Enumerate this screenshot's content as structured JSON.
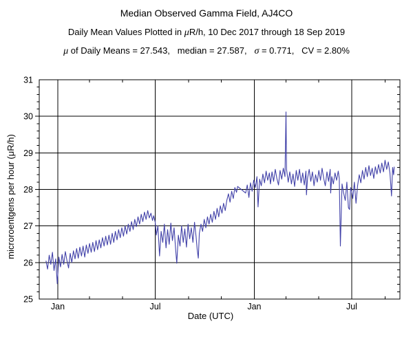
{
  "header": {
    "title": "Median Observed Gamma Field, AJ4CO",
    "subtitle_parts": [
      {
        "t": "Daily Mean Values Plotted in ",
        "i": 0
      },
      {
        "t": "μ",
        "i": 1
      },
      {
        "t": "R/h, 10 Dec 2017 through 18 Sep 2019",
        "i": 0
      }
    ],
    "stats_parts": [
      {
        "t": "μ",
        "i": 1
      },
      {
        "t": " of Daily Means = 27.543,   ",
        "i": 0
      },
      {
        "t": "median = 27.587,   ",
        "i": 0
      },
      {
        "t": "σ",
        "i": 1
      },
      {
        "t": " = 0.771,   ",
        "i": 0
      },
      {
        "t": "CV = 2.80%",
        "i": 0
      }
    ]
  },
  "chart_data": {
    "type": "line",
    "title": "Median Observed Gamma Field, AJ4CO",
    "xlabel": "Date (UTC)",
    "ylabel": "microroentgens per hour (μR/h)",
    "x_start_date": "2017-12-10",
    "x_end_date": "2019-09-18",
    "ylim": [
      25,
      31
    ],
    "y_major_ticks": [
      25,
      26,
      27,
      28,
      29,
      30,
      31
    ],
    "y_minor_step": 0.2,
    "x_major_ticks": [
      {
        "day": 22,
        "label": "Jan"
      },
      {
        "day": 203,
        "label": "Jul"
      },
      {
        "day": 387,
        "label": "Jan"
      },
      {
        "day": 568,
        "label": "Jul"
      }
    ],
    "x_minor_tick_days": [
      81,
      142,
      265,
      326,
      446,
      507,
      630
    ],
    "x_range_days": [
      -12.5,
      657.6
    ],
    "grid": true,
    "legend": "none",
    "colors": {
      "line": "#4040a8",
      "grid": "#000000",
      "background": "#ffffff",
      "text": "#000000"
    },
    "stats": {
      "mean": 27.543,
      "median": 27.587,
      "sigma": 0.771,
      "cv_percent": 2.8
    },
    "series": [
      {
        "name": "daily-mean-gamma-field",
        "points": [
          [
            0,
            26.05
          ],
          [
            3,
            25.82
          ],
          [
            6,
            26.2
          ],
          [
            9,
            25.95
          ],
          [
            12,
            26.28
          ],
          [
            15,
            25.78
          ],
          [
            18,
            26.1
          ],
          [
            21,
            25.42
          ],
          [
            24,
            26.15
          ],
          [
            27,
            25.88
          ],
          [
            30,
            26.22
          ],
          [
            33,
            25.95
          ],
          [
            36,
            26.3
          ],
          [
            39,
            26.05
          ],
          [
            42,
            25.85
          ],
          [
            45,
            26.25
          ],
          [
            48,
            26.0
          ],
          [
            51,
            26.32
          ],
          [
            54,
            26.1
          ],
          [
            57,
            26.38
          ],
          [
            60,
            26.12
          ],
          [
            63,
            26.42
          ],
          [
            66,
            26.18
          ],
          [
            69,
            26.45
          ],
          [
            72,
            26.15
          ],
          [
            75,
            26.48
          ],
          [
            78,
            26.25
          ],
          [
            81,
            26.52
          ],
          [
            84,
            26.28
          ],
          [
            87,
            26.55
          ],
          [
            90,
            26.3
          ],
          [
            93,
            26.6
          ],
          [
            96,
            26.35
          ],
          [
            99,
            26.62
          ],
          [
            102,
            26.4
          ],
          [
            105,
            26.68
          ],
          [
            108,
            26.45
          ],
          [
            111,
            26.72
          ],
          [
            114,
            26.48
          ],
          [
            117,
            26.75
          ],
          [
            120,
            26.5
          ],
          [
            123,
            26.8
          ],
          [
            126,
            26.55
          ],
          [
            129,
            26.85
          ],
          [
            132,
            26.62
          ],
          [
            135,
            26.9
          ],
          [
            138,
            26.68
          ],
          [
            141,
            26.95
          ],
          [
            144,
            26.72
          ],
          [
            147,
            27.0
          ],
          [
            150,
            26.78
          ],
          [
            153,
            27.05
          ],
          [
            156,
            26.85
          ],
          [
            159,
            27.12
          ],
          [
            162,
            26.9
          ],
          [
            165,
            27.18
          ],
          [
            168,
            26.98
          ],
          [
            171,
            27.25
          ],
          [
            174,
            27.05
          ],
          [
            177,
            27.32
          ],
          [
            180,
            27.12
          ],
          [
            183,
            27.38
          ],
          [
            186,
            27.18
          ],
          [
            189,
            27.42
          ],
          [
            192,
            27.22
          ],
          [
            195,
            27.35
          ],
          [
            198,
            27.15
          ],
          [
            200,
            27.28
          ],
          [
            203,
            27.1
          ],
          [
            205,
            26.75
          ],
          [
            208,
            27.0
          ],
          [
            211,
            26.18
          ],
          [
            214,
            26.85
          ],
          [
            217,
            26.55
          ],
          [
            220,
            27.05
          ],
          [
            223,
            26.4
          ],
          [
            226,
            26.9
          ],
          [
            229,
            26.5
          ],
          [
            232,
            27.08
          ],
          [
            235,
            26.6
          ],
          [
            238,
            26.95
          ],
          [
            241,
            26.35
          ],
          [
            243,
            25.98
          ],
          [
            246,
            26.75
          ],
          [
            249,
            26.45
          ],
          [
            252,
            27.0
          ],
          [
            255,
            26.55
          ],
          [
            258,
            26.92
          ],
          [
            261,
            26.42
          ],
          [
            264,
            27.05
          ],
          [
            267,
            26.65
          ],
          [
            270,
            26.95
          ],
          [
            273,
            26.55
          ],
          [
            276,
            27.1
          ],
          [
            279,
            26.7
          ],
          [
            281,
            26.35
          ],
          [
            283,
            26.12
          ],
          [
            285,
            26.8
          ],
          [
            288,
            27.05
          ],
          [
            291,
            26.85
          ],
          [
            294,
            27.18
          ],
          [
            297,
            26.95
          ],
          [
            300,
            27.25
          ],
          [
            303,
            27.05
          ],
          [
            306,
            27.32
          ],
          [
            309,
            27.1
          ],
          [
            312,
            27.4
          ],
          [
            315,
            27.18
          ],
          [
            318,
            27.48
          ],
          [
            321,
            27.25
          ],
          [
            324,
            27.55
          ],
          [
            327,
            27.35
          ],
          [
            330,
            27.62
          ],
          [
            333,
            27.42
          ],
          [
            336,
            27.7
          ],
          [
            339,
            27.88
          ],
          [
            342,
            27.65
          ],
          [
            345,
            27.95
          ],
          [
            348,
            27.75
          ],
          [
            351,
            28.05
          ],
          [
            354,
            27.92
          ],
          [
            356,
            28.08
          ],
          [
            371,
            27.9
          ],
          [
            374,
            28.12
          ],
          [
            377,
            27.78
          ],
          [
            380,
            28.18
          ],
          [
            383,
            27.95
          ],
          [
            386,
            28.25
          ],
          [
            389,
            28.05
          ],
          [
            392,
            28.35
          ],
          [
            394,
            27.52
          ],
          [
            397,
            28.28
          ],
          [
            400,
            28.1
          ],
          [
            403,
            28.42
          ],
          [
            406,
            28.18
          ],
          [
            409,
            28.5
          ],
          [
            412,
            28.25
          ],
          [
            415,
            28.45
          ],
          [
            417,
            28.15
          ],
          [
            420,
            28.48
          ],
          [
            423,
            28.22
          ],
          [
            426,
            28.55
          ],
          [
            429,
            28.3
          ],
          [
            432,
            28.12
          ],
          [
            435,
            28.52
          ],
          [
            438,
            28.28
          ],
          [
            441,
            28.58
          ],
          [
            444,
            28.35
          ],
          [
            446,
            30.12
          ],
          [
            447,
            28.55
          ],
          [
            450,
            28.2
          ],
          [
            453,
            28.48
          ],
          [
            456,
            28.15
          ],
          [
            459,
            28.42
          ],
          [
            462,
            28.08
          ],
          [
            465,
            28.52
          ],
          [
            468,
            28.25
          ],
          [
            471,
            28.55
          ],
          [
            474,
            28.18
          ],
          [
            477,
            28.45
          ],
          [
            480,
            28.12
          ],
          [
            483,
            28.5
          ],
          [
            484,
            27.85
          ],
          [
            486,
            28.3
          ],
          [
            489,
            28.55
          ],
          [
            492,
            28.22
          ],
          [
            495,
            28.48
          ],
          [
            498,
            28.1
          ],
          [
            501,
            28.4
          ],
          [
            504,
            28.2
          ],
          [
            507,
            28.52
          ],
          [
            510,
            28.25
          ],
          [
            513,
            28.58
          ],
          [
            516,
            28.3
          ],
          [
            519,
            28.1
          ],
          [
            522,
            28.48
          ],
          [
            525,
            28.22
          ],
          [
            528,
            28.55
          ],
          [
            529,
            27.9
          ],
          [
            531,
            28.35
          ],
          [
            534,
            28.15
          ],
          [
            537,
            28.45
          ],
          [
            540,
            28.25
          ],
          [
            543,
            28.5
          ],
          [
            545,
            28.3
          ],
          [
            547,
            26.45
          ],
          [
            550,
            28.15
          ],
          [
            553,
            27.9
          ],
          [
            556,
            27.7
          ],
          [
            559,
            28.2
          ],
          [
            562,
            27.5
          ],
          [
            564,
            27.45
          ],
          [
            566,
            28.05
          ],
          [
            568,
            27.95
          ],
          [
            570,
            27.75
          ],
          [
            573,
            28.2
          ],
          [
            576,
            27.62
          ],
          [
            579,
            28.1
          ],
          [
            582,
            28.4
          ],
          [
            585,
            28.18
          ],
          [
            588,
            28.52
          ],
          [
            591,
            28.28
          ],
          [
            594,
            28.6
          ],
          [
            597,
            28.35
          ],
          [
            600,
            28.65
          ],
          [
            603,
            28.38
          ],
          [
            606,
            28.58
          ],
          [
            609,
            28.3
          ],
          [
            612,
            28.62
          ],
          [
            615,
            28.42
          ],
          [
            618,
            28.68
          ],
          [
            621,
            28.45
          ],
          [
            624,
            28.72
          ],
          [
            627,
            28.48
          ],
          [
            630,
            28.8
          ],
          [
            633,
            28.55
          ],
          [
            636,
            28.75
          ],
          [
            639,
            28.45
          ],
          [
            642,
            27.82
          ],
          [
            644,
            28.6
          ],
          [
            646,
            28.4
          ],
          [
            647,
            28.62
          ]
        ]
      }
    ]
  }
}
